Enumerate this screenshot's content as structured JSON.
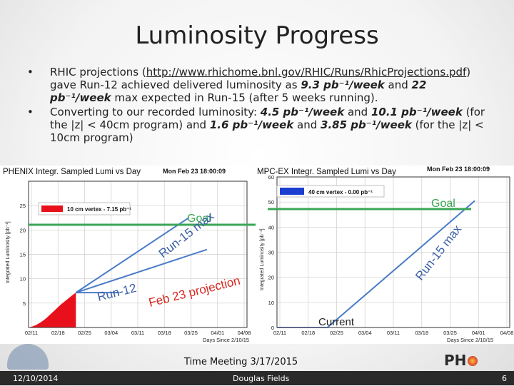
{
  "slide": {
    "title": "Luminosity Progress",
    "bullet1": {
      "pre": "RHIC projections (",
      "link": "http://www.rhichome.bnl.gov/RHIC/Runs/RhicProjections.pdf",
      "mid1": ") gave Run-12 achieved delivered luminosity as ",
      "v1": "9.3 pb⁻¹/week",
      "mid2": " and ",
      "v2": "22 pb⁻¹/week",
      "post": " max expected in Run-15 (after 5 weeks running)."
    },
    "bullet2": {
      "pre": "Converting to our recorded luminosity: ",
      "v1": "4.5 pb⁻¹/week",
      "mid1": " and ",
      "v2": "10.1 pb⁻¹/week",
      "mid2": " (for the |z| < 40cm program) and ",
      "v3": "1.6 pb⁻¹/week",
      "mid3": " and ",
      "v4": "3.85 pb⁻¹/week",
      "post": " (for the |z| < 10cm program)"
    },
    "footer": {
      "date": "12/10/2014",
      "meeting": "Time Meeting 3/17/2015",
      "author": "Douglas Fields",
      "page": "6",
      "logo_left": "PH",
      "logo_right": "ENIX"
    },
    "colors": {
      "goal": "#3aa655",
      "projection": "#4a7bc8",
      "fill": "#e8101a",
      "legend2": "#1a3fd0"
    }
  },
  "chart_data": [
    {
      "type": "area",
      "title": "PHENIX Integr. Sampled Lumi vs Day",
      "timestamp": "Mon Feb 23 18:00:09",
      "ylabel": "Integrated Luminosity [pb⁻¹]",
      "xlabel": "Days Since 2/10/15",
      "ylim": [
        0,
        30
      ],
      "yticks": [
        5,
        10,
        15,
        20,
        25
      ],
      "xticks": [
        "02/11",
        "02/18",
        "02/25",
        "03/04",
        "03/11",
        "03/18",
        "03/25",
        "04/01",
        "04/08"
      ],
      "legend": "10 cm vertex -  7.15 pb⁻¹",
      "series": [
        {
          "x": [
            0,
            1,
            2,
            3,
            4,
            5,
            6,
            7,
            8,
            9,
            10,
            11,
            12,
            13
          ],
          "values": [
            0,
            0.2,
            0.5,
            0.9,
            1.4,
            2.0,
            2.7,
            3.4,
            4.1,
            4.8,
            5.4,
            6.0,
            6.6,
            7.15
          ]
        }
      ],
      "projections": [
        {
          "label": "Run-12",
          "x": [
            13,
            25
          ],
          "values": [
            7.15,
            7.15
          ]
        },
        {
          "label": "Feb 23 projection",
          "x": [
            13,
            49
          ],
          "values": [
            7.15,
            16.0
          ]
        },
        {
          "label": "Run-15 max",
          "x": [
            13,
            44
          ],
          "values": [
            7.15,
            22.5
          ]
        }
      ],
      "goal": {
        "label": "Goal",
        "value": 22.5
      }
    },
    {
      "type": "line",
      "title": "MPC-EX Integr. Sampled Lumi vs Day",
      "timestamp": "Mon Feb 23 18:00:09",
      "ylabel": "Integrated Luminosity [pb⁻¹]",
      "xlabel": "Days Since 2/10/15",
      "ylim": [
        0,
        60
      ],
      "yticks": [
        0,
        10,
        20,
        30,
        40,
        50,
        60
      ],
      "xticks": [
        "02/11",
        "02/18",
        "02/25",
        "03/04",
        "03/11",
        "03/18",
        "03/25",
        "04/01",
        "04/08"
      ],
      "legend": "40 cm vertex -  0.00 pb⁻¹",
      "series": [
        {
          "x": [
            0,
            13
          ],
          "values": [
            0,
            0
          ]
        }
      ],
      "projections": [
        {
          "label": "Run-15 max",
          "x": [
            13,
            51
          ],
          "values": [
            0,
            50.5
          ]
        }
      ],
      "goal": {
        "label": "Goal",
        "value": 50.5
      },
      "current_label": "Current"
    }
  ]
}
